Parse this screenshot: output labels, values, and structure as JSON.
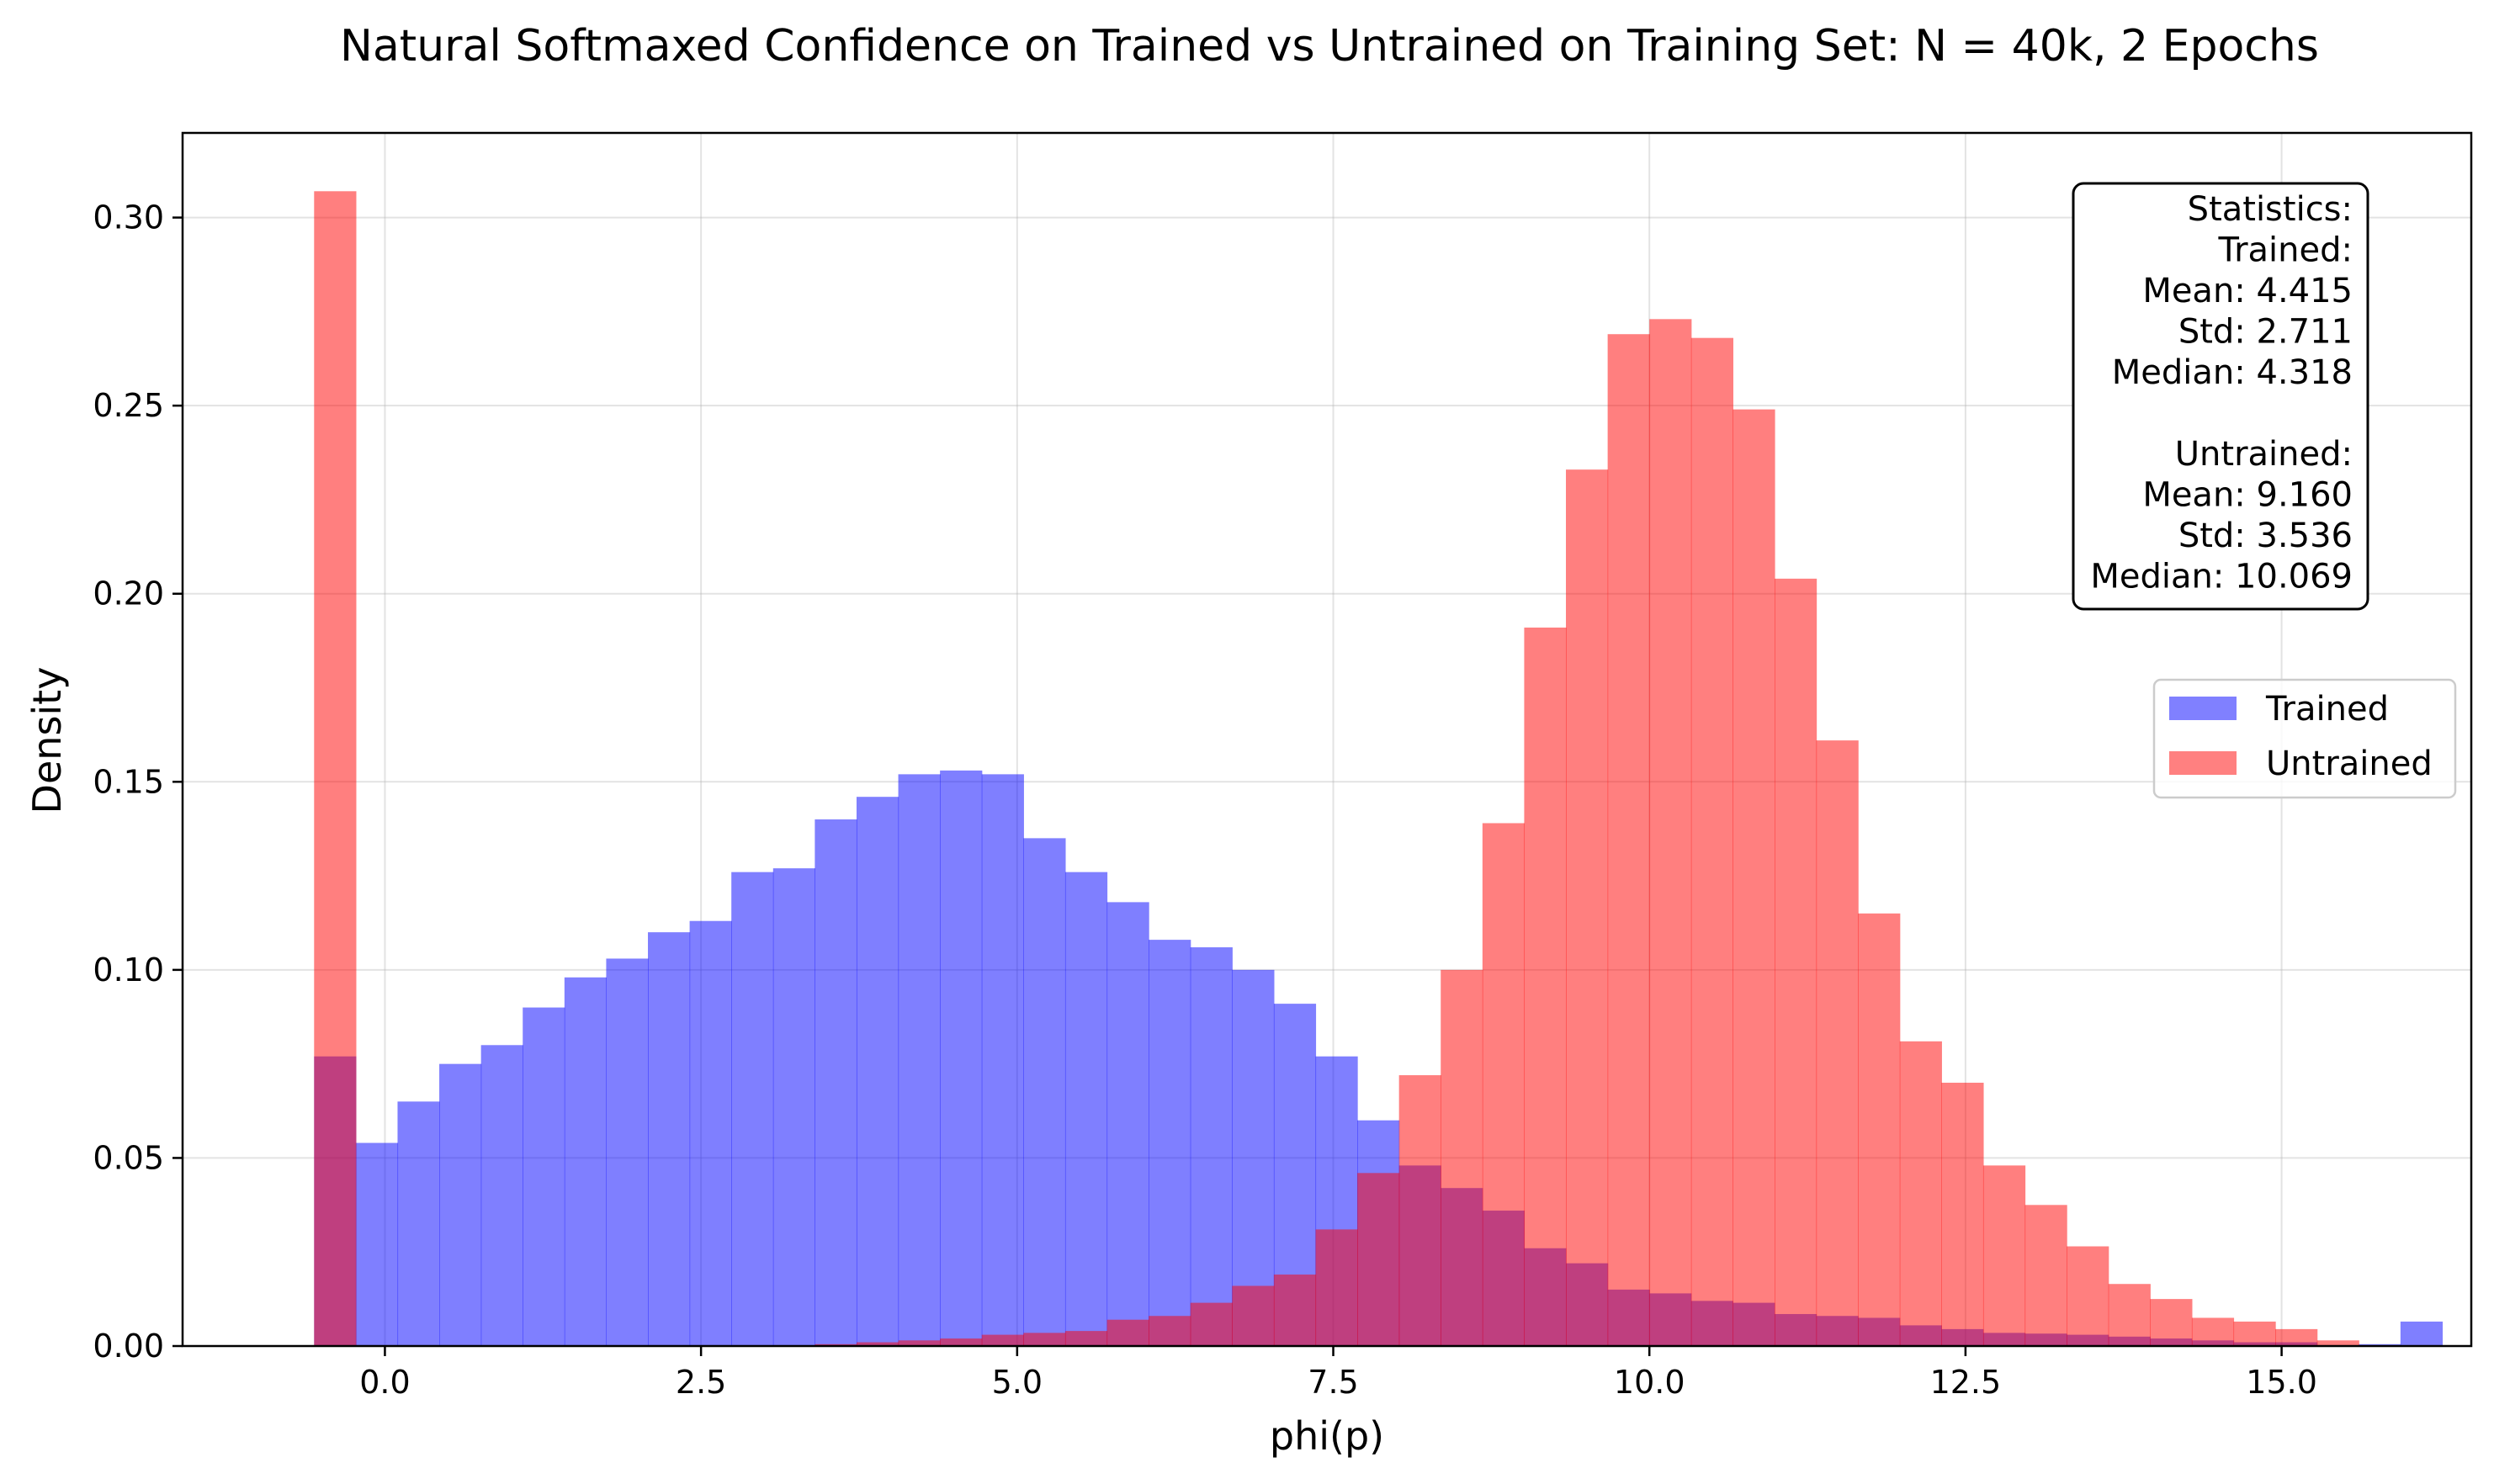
{
  "chart_data": {
    "type": "bar",
    "title": "Natural Softmaxed Confidence on Trained vs Untrained on Training Set: N = 40k, 2 Epochs",
    "xlabel": "phi(p)",
    "ylabel": "Density",
    "xlim": [
      -1.6,
      16.5
    ],
    "ylim": [
      0,
      0.3225
    ],
    "xticks": [
      0.0,
      2.5,
      5.0,
      7.5,
      10.0,
      12.5,
      15.0
    ],
    "xtick_labels": [
      "0.0",
      "2.5",
      "5.0",
      "7.5",
      "10.0",
      "12.5",
      "15.0"
    ],
    "yticks": [
      0.0,
      0.05,
      0.1,
      0.15,
      0.2,
      0.25,
      0.3
    ],
    "ytick_labels": [
      "0.00",
      "0.05",
      "0.10",
      "0.15",
      "0.20",
      "0.25",
      "0.30"
    ],
    "grid": true,
    "legend_position": "center-right",
    "bin_start": -0.56,
    "bin_width": 0.33,
    "series": [
      {
        "name": "Trained",
        "color": "#8080ff",
        "values": [
          0.077,
          0.054,
          0.065,
          0.075,
          0.08,
          0.09,
          0.098,
          0.103,
          0.11,
          0.113,
          0.126,
          0.127,
          0.14,
          0.146,
          0.152,
          0.153,
          0.152,
          0.135,
          0.126,
          0.118,
          0.108,
          0.106,
          0.1,
          0.091,
          0.077,
          0.06,
          0.048,
          0.042,
          0.036,
          0.026,
          0.022,
          0.015,
          0.014,
          0.012,
          0.0115,
          0.0085,
          0.008,
          0.0075,
          0.0055,
          0.0045,
          0.0035,
          0.0033,
          0.003,
          0.0025,
          0.002,
          0.0015,
          0.001,
          0.001,
          0.0,
          0.0005,
          0.0065
        ]
      },
      {
        "name": "Untrained",
        "color": "#ff8080",
        "values": [
          0.307,
          0.0,
          0.0,
          0.0,
          0.0,
          0.0,
          0.0,
          0.0,
          0.0,
          0.0,
          0.0,
          0.0,
          0.0005,
          0.001,
          0.0015,
          0.002,
          0.003,
          0.0035,
          0.004,
          0.007,
          0.008,
          0.0115,
          0.016,
          0.019,
          0.031,
          0.046,
          0.072,
          0.1,
          0.139,
          0.191,
          0.233,
          0.269,
          0.273,
          0.268,
          0.249,
          0.204,
          0.161,
          0.115,
          0.081,
          0.07,
          0.048,
          0.0375,
          0.0265,
          0.0165,
          0.0125,
          0.0075,
          0.0065,
          0.0045,
          0.0015,
          0.0,
          0.0
        ]
      }
    ],
    "stats_box": {
      "lines": [
        "Statistics:",
        "Trained:",
        "Mean: 4.415",
        "Std: 2.711",
        "Median: 4.318",
        "",
        "Untrained:",
        "Mean: 9.160",
        "Std: 3.536",
        "Median: 10.069"
      ]
    }
  }
}
